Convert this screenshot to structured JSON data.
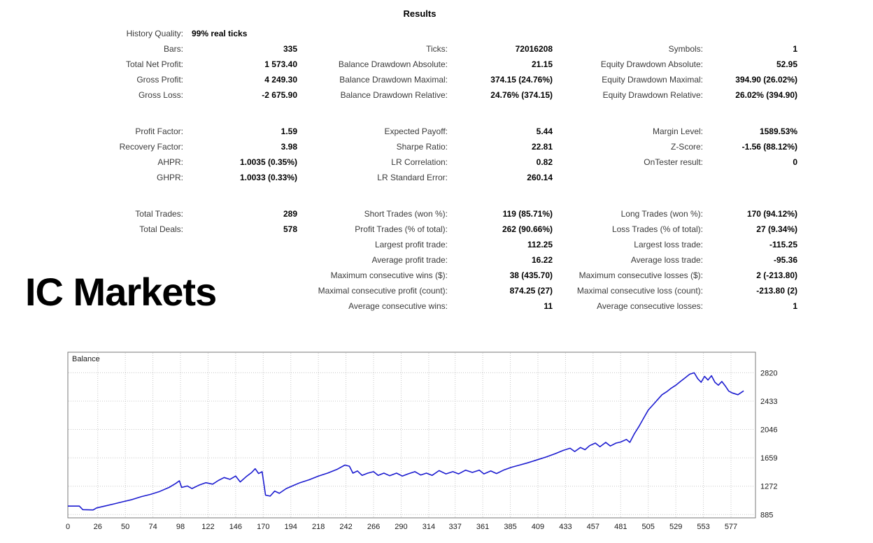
{
  "title": "Results",
  "watermark": "IC Markets",
  "stats": {
    "rows": [
      {
        "c1l": "History Quality:",
        "c1v": "99% real ticks",
        "c2l": "",
        "c2v": "",
        "c3l": "",
        "c3v": ""
      },
      {
        "c1l": "Bars:",
        "c1v": "335",
        "c2l": "Ticks:",
        "c2v": "72016208",
        "c3l": "Symbols:",
        "c3v": "1"
      },
      {
        "c1l": "Total Net Profit:",
        "c1v": "1 573.40",
        "c2l": "Balance Drawdown Absolute:",
        "c2v": "21.15",
        "c3l": "Equity Drawdown Absolute:",
        "c3v": "52.95"
      },
      {
        "c1l": "Gross Profit:",
        "c1v": "4 249.30",
        "c2l": "Balance Drawdown Maximal:",
        "c2v": "374.15 (24.76%)",
        "c3l": "Equity Drawdown Maximal:",
        "c3v": "394.90 (26.02%)"
      },
      {
        "c1l": "Gross Loss:",
        "c1v": "-2 675.90",
        "c2l": "Balance Drawdown Relative:",
        "c2v": "24.76% (374.15)",
        "c3l": "Equity Drawdown Relative:",
        "c3v": "26.02% (394.90)"
      },
      {
        "c1l": "",
        "c1v": "",
        "c2l": "",
        "c2v": "",
        "c3l": "",
        "c3v": ""
      },
      {
        "c1l": "Profit Factor:",
        "c1v": "1.59",
        "c2l": "Expected Payoff:",
        "c2v": "5.44",
        "c3l": "Margin Level:",
        "c3v": "1589.53%"
      },
      {
        "c1l": "Recovery Factor:",
        "c1v": "3.98",
        "c2l": "Sharpe Ratio:",
        "c2v": "22.81",
        "c3l": "Z-Score:",
        "c3v": "-1.56 (88.12%)"
      },
      {
        "c1l": "AHPR:",
        "c1v": "1.0035 (0.35%)",
        "c2l": "LR Correlation:",
        "c2v": "0.82",
        "c3l": "OnTester result:",
        "c3v": "0"
      },
      {
        "c1l": "GHPR:",
        "c1v": "1.0033 (0.33%)",
        "c2l": "LR Standard Error:",
        "c2v": "260.14",
        "c3l": "",
        "c3v": ""
      },
      {
        "c1l": "",
        "c1v": "",
        "c2l": "",
        "c2v": "",
        "c3l": "",
        "c3v": ""
      },
      {
        "c1l": "Total Trades:",
        "c1v": "289",
        "c2l": "Short Trades (won %):",
        "c2v": "119 (85.71%)",
        "c3l": "Long Trades (won %):",
        "c3v": "170 (94.12%)"
      },
      {
        "c1l": "Total Deals:",
        "c1v": "578",
        "c2l": "Profit Trades (% of total):",
        "c2v": "262 (90.66%)",
        "c3l": "Loss Trades (% of total):",
        "c3v": "27 (9.34%)"
      },
      {
        "c1l": "",
        "c1v": "",
        "c2l": "Largest profit trade:",
        "c2v": "112.25",
        "c3l": "Largest loss trade:",
        "c3v": "-115.25"
      },
      {
        "c1l": "",
        "c1v": "",
        "c2l": "Average profit trade:",
        "c2v": "16.22",
        "c3l": "Average loss trade:",
        "c3v": "-95.36"
      },
      {
        "c1l": "",
        "c1v": "",
        "c2l": "Maximum consecutive wins ($):",
        "c2v": "38 (435.70)",
        "c3l": "Maximum consecutive losses ($):",
        "c3v": "2 (-213.80)"
      },
      {
        "c1l": "",
        "c1v": "",
        "c2l": "Maximal consecutive profit (count):",
        "c2v": "874.25 (27)",
        "c3l": "Maximal consecutive loss (count):",
        "c3v": "-213.80 (2)"
      },
      {
        "c1l": "",
        "c1v": "",
        "c2l": "Average consecutive wins:",
        "c2v": "11",
        "c3l": "Average consecutive losses:",
        "c3v": "1"
      }
    ]
  },
  "chart_data": {
    "type": "line",
    "legend": "Balance",
    "x_ticks": [
      0,
      26,
      50,
      74,
      98,
      122,
      146,
      170,
      194,
      218,
      242,
      266,
      290,
      314,
      337,
      361,
      385,
      409,
      433,
      457,
      481,
      505,
      529,
      553,
      577
    ],
    "y_ticks": [
      885,
      1272,
      1659,
      2046,
      2433,
      2820
    ],
    "xlim": [
      0,
      598
    ],
    "ylim": [
      840,
      3100
    ],
    "grid": true,
    "line_color": "#1c1cd0",
    "grid_color": "#c8c8c8",
    "border_color": "#7a7a7a",
    "axis_text_color": "#1a1a1a",
    "series": [
      {
        "name": "Balance",
        "points": [
          [
            0,
            1000
          ],
          [
            10,
            1000
          ],
          [
            13,
            952
          ],
          [
            22,
            948
          ],
          [
            25,
            975
          ],
          [
            32,
            1000
          ],
          [
            40,
            1030
          ],
          [
            48,
            1060
          ],
          [
            56,
            1090
          ],
          [
            64,
            1130
          ],
          [
            72,
            1160
          ],
          [
            80,
            1200
          ],
          [
            88,
            1255
          ],
          [
            94,
            1310
          ],
          [
            97,
            1345
          ],
          [
            99,
            1255
          ],
          [
            104,
            1275
          ],
          [
            108,
            1240
          ],
          [
            114,
            1285
          ],
          [
            120,
            1320
          ],
          [
            126,
            1300
          ],
          [
            131,
            1350
          ],
          [
            136,
            1390
          ],
          [
            141,
            1365
          ],
          [
            146,
            1410
          ],
          [
            150,
            1330
          ],
          [
            155,
            1400
          ],
          [
            160,
            1460
          ],
          [
            163,
            1510
          ],
          [
            166,
            1445
          ],
          [
            169,
            1470
          ],
          [
            172,
            1150
          ],
          [
            176,
            1137
          ],
          [
            180,
            1205
          ],
          [
            184,
            1175
          ],
          [
            190,
            1240
          ],
          [
            196,
            1280
          ],
          [
            202,
            1320
          ],
          [
            210,
            1360
          ],
          [
            218,
            1410
          ],
          [
            226,
            1450
          ],
          [
            234,
            1500
          ],
          [
            241,
            1560
          ],
          [
            245,
            1545
          ],
          [
            248,
            1450
          ],
          [
            252,
            1480
          ],
          [
            256,
            1420
          ],
          [
            261,
            1450
          ],
          [
            266,
            1470
          ],
          [
            270,
            1420
          ],
          [
            275,
            1450
          ],
          [
            280,
            1415
          ],
          [
            286,
            1450
          ],
          [
            291,
            1410
          ],
          [
            296,
            1440
          ],
          [
            302,
            1470
          ],
          [
            307,
            1425
          ],
          [
            312,
            1450
          ],
          [
            317,
            1420
          ],
          [
            323,
            1485
          ],
          [
            329,
            1440
          ],
          [
            335,
            1470
          ],
          [
            340,
            1440
          ],
          [
            346,
            1490
          ],
          [
            352,
            1460
          ],
          [
            358,
            1490
          ],
          [
            362,
            1440
          ],
          [
            368,
            1480
          ],
          [
            373,
            1445
          ],
          [
            379,
            1490
          ],
          [
            386,
            1530
          ],
          [
            393,
            1560
          ],
          [
            400,
            1590
          ],
          [
            408,
            1630
          ],
          [
            416,
            1670
          ],
          [
            424,
            1715
          ],
          [
            431,
            1760
          ],
          [
            437,
            1790
          ],
          [
            441,
            1745
          ],
          [
            446,
            1800
          ],
          [
            450,
            1770
          ],
          [
            454,
            1825
          ],
          [
            459,
            1860
          ],
          [
            463,
            1810
          ],
          [
            468,
            1870
          ],
          [
            472,
            1820
          ],
          [
            477,
            1860
          ],
          [
            481,
            1875
          ],
          [
            486,
            1910
          ],
          [
            489,
            1870
          ],
          [
            493,
            1990
          ],
          [
            497,
            2090
          ],
          [
            501,
            2200
          ],
          [
            505,
            2310
          ],
          [
            509,
            2380
          ],
          [
            513,
            2450
          ],
          [
            517,
            2520
          ],
          [
            521,
            2560
          ],
          [
            525,
            2610
          ],
          [
            529,
            2650
          ],
          [
            533,
            2700
          ],
          [
            537,
            2750
          ],
          [
            541,
            2800
          ],
          [
            545,
            2820
          ],
          [
            548,
            2740
          ],
          [
            551,
            2690
          ],
          [
            554,
            2770
          ],
          [
            557,
            2720
          ],
          [
            560,
            2780
          ],
          [
            563,
            2690
          ],
          [
            566,
            2650
          ],
          [
            569,
            2700
          ],
          [
            572,
            2640
          ],
          [
            575,
            2570
          ],
          [
            578,
            2545
          ],
          [
            583,
            2520
          ],
          [
            588,
            2573
          ]
        ]
      }
    ]
  }
}
